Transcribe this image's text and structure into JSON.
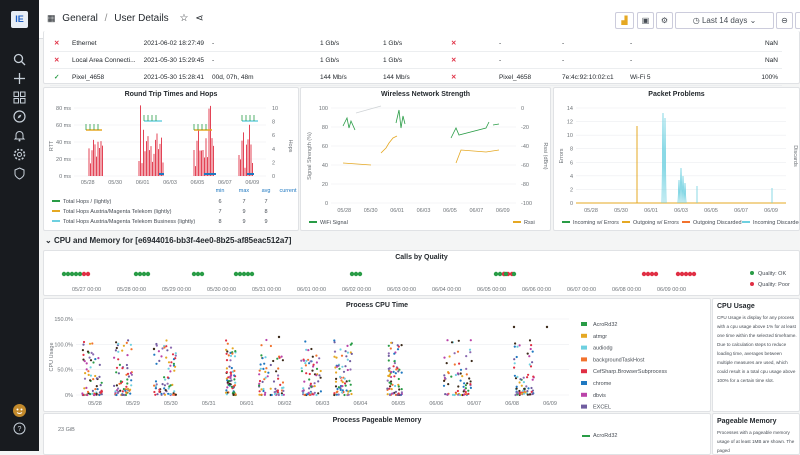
{
  "sidebar": {
    "logo": "IE",
    "icons": [
      "search-icon",
      "plus-icon",
      "dashboards-icon",
      "explore-icon",
      "bell-icon",
      "gear-icon",
      "shield-icon",
      "avatar",
      "help-icon"
    ]
  },
  "topbar": {
    "breadcrumb_root": "General",
    "breadcrumb_sep": "/",
    "breadcrumb_page": "User Details",
    "time_range": "Last 14 days"
  },
  "network_table": {
    "rows": [
      {
        "status": "x",
        "name": "Ethernet",
        "date": "2021-06-02 18:27:49",
        "uptime": "-",
        "speed1": "1 Gb/s",
        "speed2": "1 Gb/s",
        "wifi_status": "x",
        "ssid": "-",
        "mac": "-",
        "wifi": "-",
        "pct": "NaN"
      },
      {
        "status": "x",
        "name": "Local Area Connecti...",
        "date": "2021-05-30 15:29:45",
        "uptime": "-",
        "speed1": "1 Gb/s",
        "speed2": "1 Gb/s",
        "wifi_status": "x",
        "ssid": "-",
        "mac": "-",
        "wifi": "-",
        "pct": "NaN"
      },
      {
        "status": "ok",
        "name": "Pixel_4658",
        "date": "2021-05-30 15:28:41",
        "uptime": "00d, 07h, 48m",
        "speed1": "144 Mb/s",
        "speed2": "144 Mb/s",
        "wifi_status": "x",
        "ssid": "Pixel_4658",
        "mac": "7e:4c:92:10:02:c1",
        "wifi": "Wi-Fi 5",
        "pct": "100%"
      }
    ]
  },
  "rtt_panel": {
    "title": "Round Trip Times and Hops",
    "ylabel_left": "RTT",
    "ylabel_right": "Hops",
    "y_ticks_left": [
      "80 ms",
      "60 ms",
      "40 ms",
      "20 ms",
      "0 ms"
    ],
    "y_ticks_right": [
      "10",
      "8",
      "6",
      "4",
      "2",
      "0"
    ],
    "x_ticks": [
      "05/28",
      "05/30",
      "06/01",
      "06/03",
      "06/05",
      "06/07",
      "06/09"
    ],
    "legend_headers": [
      "min",
      "max",
      "avg",
      "current"
    ],
    "legend": [
      {
        "name": "Total Hops / (lightly)",
        "color": "#299c46",
        "min": "6",
        "max": "7",
        "avg": "7",
        "current": ""
      },
      {
        "name": "Total Hops Austria/Magenta Telekom (lightly)",
        "color": "#e5a823",
        "min": "7",
        "max": "9",
        "avg": "8",
        "current": ""
      },
      {
        "name": "Total Hops Austria/Magenta Telekom Business (lightly)",
        "color": "#6ed0e0",
        "min": "8",
        "max": "9",
        "avg": "9",
        "current": ""
      }
    ]
  },
  "wifi_panel": {
    "title": "Wireless Network Strength",
    "ylabel_left": "Signal Strength (%)",
    "ylabel_right": "Rssi (dBm)",
    "y_ticks_left": [
      "100",
      "80",
      "60",
      "40",
      "20",
      "0"
    ],
    "y_ticks_right": [
      "0",
      "-20",
      "-40",
      "-60",
      "-80",
      "-100"
    ],
    "x_ticks": [
      "05/28",
      "05/30",
      "06/01",
      "06/03",
      "06/05",
      "06/07",
      "06/09"
    ],
    "legend": [
      {
        "name": "WiFi Signal",
        "color": "#299c46"
      },
      {
        "name": "Rssi",
        "color": "#e5a823"
      }
    ]
  },
  "packet_panel": {
    "title": "Packet Problems",
    "ylabel_left": "Errors",
    "ylabel_right": "Discards",
    "y_ticks": [
      "14",
      "12",
      "10",
      "8",
      "6",
      "4",
      "2",
      "0"
    ],
    "x_ticks": [
      "05/28",
      "05/30",
      "06/01",
      "06/03",
      "06/05",
      "06/07",
      "06/09"
    ],
    "legend": [
      {
        "name": "Incoming w/ Errors",
        "color": "#299c46"
      },
      {
        "name": "Outgoing w/ Errors",
        "color": "#e5a823"
      },
      {
        "name": "Outgoing Discarded",
        "color": "#f2722d"
      },
      {
        "name": "Incoming Discarded",
        "color": "#6ed0e0"
      }
    ]
  },
  "section_title": "CPU and Memory for [e6944016-bb3f-4ee0-8b25-af85eac512a7]",
  "quality_panel": {
    "title": "Calls by Quality",
    "x_ticks": [
      "05/27 00:00",
      "05/28 00:00",
      "05/29 00:00",
      "05/30 00:00",
      "05/31 00:00",
      "06/01 00:00",
      "06/02 00:00",
      "06/03 00:00",
      "06/04 00:00",
      "06/05 00:00",
      "06/06 00:00",
      "06/07 00:00",
      "06/08 00:00",
      "06/09 00:00"
    ],
    "legend": [
      {
        "name": "Quality: OK",
        "color": "#299c46"
      },
      {
        "name": "Quality: Poor",
        "color": "#e02f44"
      }
    ]
  },
  "cpu_panel": {
    "title": "Process CPU Time",
    "ylabel": "CPU Usage",
    "y_ticks": [
      "150.0%",
      "100.0%",
      "50.0%",
      "0%"
    ],
    "x_ticks": [
      "05/28",
      "05/29",
      "05/30",
      "05/31",
      "06/01",
      "06/02",
      "06/03",
      "06/04",
      "06/05",
      "06/06",
      "06/07",
      "06/08",
      "06/09"
    ],
    "legend": [
      {
        "name": "AcroRd32",
        "color": "#299c46"
      },
      {
        "name": "atmgr",
        "color": "#e5a823"
      },
      {
        "name": "audiodg",
        "color": "#6ed0e0"
      },
      {
        "name": "backgroundTaskHost",
        "color": "#f2722d"
      },
      {
        "name": "CefSharp.BrowserSubprocess",
        "color": "#e02f44"
      },
      {
        "name": "chrome",
        "color": "#1f78c1"
      },
      {
        "name": "dbvis",
        "color": "#ba43a9"
      },
      {
        "name": "EXCEL",
        "color": "#705da0"
      }
    ]
  },
  "cpu_text": {
    "title": "CPU Usage",
    "body": "CPU Usage is display for any process with a cpu usage above 1% for at least one time within the selected timeframe. Due to calculation steps to reduce loading time, averages between multiple measures are used, which could result in a total cpu usage above 100% for a certain time slot."
  },
  "mem_panel": {
    "title": "Process Pageable Memory",
    "y_tick": "23 GiB",
    "legend_first": "AcroRd32"
  },
  "mem_text": {
    "title": "Pageable Memory",
    "body": "Processes with a pageable memory usage of at least 1MB are shown. The paged"
  }
}
